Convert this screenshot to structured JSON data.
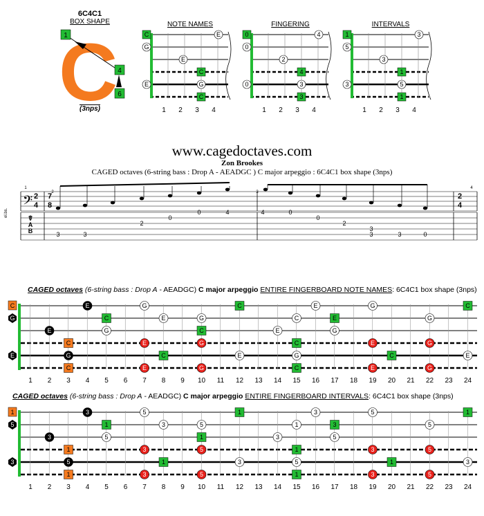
{
  "shape": {
    "name": "6C4C1",
    "type_label": "BOX SHAPE",
    "letter": "C",
    "nps_label": "(3nps)",
    "box_finger_top": "1",
    "box_finger_mid": "4",
    "box_finger_bot": "6",
    "letter_color": "#f47a1f",
    "green": "#22bb33"
  },
  "mini_diagrams": [
    {
      "title": "NOTE NAMES",
      "left_labels": [
        "C",
        "G",
        "",
        "",
        "E",
        ""
      ],
      "notes": {
        "top_right": "E",
        "string3": "E",
        "green4": "C",
        "green5": "G",
        "green6": "C"
      }
    },
    {
      "title": "FINGERING",
      "left_labels": [
        "0",
        "0",
        "",
        "",
        "0",
        ""
      ],
      "notes": {
        "top_right": "4",
        "string3": "2",
        "green4": "4",
        "green5": "3",
        "green6": "3"
      }
    },
    {
      "title": "INTERVALS",
      "left_labels": [
        "1",
        "5",
        "",
        "",
        "3",
        ""
      ],
      "notes": {
        "top_right": "3",
        "string3": "3",
        "green4": "1",
        "green5": "5",
        "green6": "1"
      }
    }
  ],
  "mini_fret_numbers": [
    "1",
    "2",
    "3",
    "4"
  ],
  "header": {
    "site": "www.cagedoctaves.com",
    "author": "Zon Brookes",
    "subtitle": "CAGED octaves (6-string bass : Drop A - AEADGC ) C major arpeggio : 6C4C1 box shape (3nps)"
  },
  "notation": {
    "instrument": "el.bs.",
    "time_sig_1": [
      "2",
      "4"
    ],
    "time_sig_2": [
      "7",
      "8"
    ],
    "tab_letters": [
      "T",
      "A",
      "B"
    ],
    "measure_numbers": [
      "1",
      "2",
      "3",
      "4"
    ],
    "tab_m2_numbers": [
      "0",
      "3",
      "3",
      "2",
      "0",
      "0",
      "4"
    ],
    "tab_m3_numbers": [
      "4",
      "0",
      "0",
      "2",
      "3",
      "3",
      "0",
      "3"
    ]
  },
  "board1": {
    "title_prefix": "CAGED octaves",
    "title_paren": "(6-string bass : Drop A",
    "title_tuning": " - AEADGC)",
    "title_bold": "C major arpeggio",
    "title_section": "ENTIRE FINGERBOARD NOTE NAMES",
    "title_tail": ": 6C4C1 box shape (3nps)",
    "open_labels": [
      "C",
      "G",
      "",
      "",
      "E",
      ""
    ],
    "notes": [
      [
        "E",
        "G",
        "C",
        "E",
        "G",
        "C"
      ],
      [
        "C",
        "E",
        "G",
        "C",
        "E",
        "G"
      ],
      [
        "E",
        "G",
        "C",
        "E",
        "G"
      ],
      [
        "C",
        "E",
        "G",
        "C",
        "E",
        "G"
      ],
      [
        "G",
        "C",
        "E",
        "G",
        "C",
        "E"
      ],
      [
        "C",
        "E",
        "G",
        "C",
        "E",
        "G"
      ]
    ]
  },
  "board2": {
    "title_prefix": "CAGED octaves",
    "title_paren": "(6-string bass : Drop A",
    "title_tuning": " - AEADGC)",
    "title_bold": "C major arpeggio",
    "title_section": "ENTIRE FINGERBOARD INTERVALS",
    "title_tail": ": 6C4C1 box shape (3nps)",
    "open_labels": [
      "1",
      "5",
      "",
      "",
      "3",
      ""
    ],
    "notes": [
      [
        "3",
        "5",
        "1",
        "3",
        "5",
        "1"
      ],
      [
        "1",
        "3",
        "5",
        "1",
        "3",
        "5"
      ],
      [
        "3",
        "5",
        "1",
        "3",
        "5"
      ],
      [
        "1",
        "3",
        "5",
        "1",
        "3",
        "5"
      ],
      [
        "5",
        "1",
        "3",
        "5",
        "1",
        "3"
      ],
      [
        "1",
        "3",
        "5",
        "1",
        "3",
        "5"
      ]
    ]
  },
  "fret_numbers": [
    "1",
    "2",
    "3",
    "4",
    "5",
    "6",
    "7",
    "8",
    "9",
    "10",
    "11",
    "12",
    "13",
    "14",
    "15",
    "16",
    "17",
    "18",
    "19",
    "20",
    "21",
    "22",
    "23",
    "24"
  ]
}
